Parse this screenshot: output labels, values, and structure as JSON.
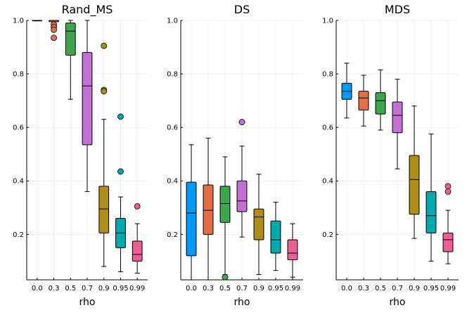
{
  "chart_data": {
    "type": "box",
    "panels": [
      {
        "title": "Rand_MS",
        "xlabel": "rho",
        "ylim": [
          0.03,
          1.0
        ],
        "yticks": [
          "0.2",
          "0.4",
          "0.6",
          "0.8",
          "1.0"
        ],
        "categories": [
          "0.0",
          "0.3",
          "0.5",
          "0.7",
          "0.9",
          "0.95",
          "0.99"
        ],
        "boxes": [
          {
            "low": 1.0,
            "q1": 1.0,
            "median": 1.0,
            "q3": 1.0,
            "high": 1.0,
            "outliers": []
          },
          {
            "low": 0.99,
            "q1": 0.995,
            "median": 1.0,
            "q3": 1.0,
            "high": 1.0,
            "outliers": [
              0.985,
              0.975,
              0.965,
              0.935
            ]
          },
          {
            "low": 0.705,
            "q1": 0.87,
            "median": 0.96,
            "q3": 0.99,
            "high": 1.0,
            "outliers": []
          },
          {
            "low": 0.36,
            "q1": 0.535,
            "median": 0.755,
            "q3": 0.88,
            "high": 1.0,
            "outliers": []
          },
          {
            "low": 0.08,
            "q1": 0.205,
            "median": 0.295,
            "q3": 0.38,
            "high": 0.63,
            "outliers": [
              0.905,
              0.74,
              0.735
            ]
          },
          {
            "low": 0.06,
            "q1": 0.15,
            "median": 0.205,
            "q3": 0.26,
            "high": 0.34,
            "outliers": [
              0.64,
              0.435
            ]
          },
          {
            "low": 0.055,
            "q1": 0.1,
            "median": 0.125,
            "q3": 0.175,
            "high": 0.24,
            "outliers": [
              0.305
            ]
          }
        ]
      },
      {
        "title": "DS",
        "xlabel": "rho",
        "ylim": [
          0.03,
          1.0
        ],
        "yticks": [
          "0.2",
          "0.4",
          "0.6",
          "0.8",
          "1.0"
        ],
        "categories": [
          "0.0",
          "0.3",
          "0.5",
          "0.7",
          "0.9",
          "0.95",
          "0.99"
        ],
        "boxes": [
          {
            "low": 0.03,
            "q1": 0.12,
            "median": 0.28,
            "q3": 0.395,
            "high": 0.535,
            "outliers": []
          },
          {
            "low": 0.03,
            "q1": 0.2,
            "median": 0.29,
            "q3": 0.385,
            "high": 0.56,
            "outliers": []
          },
          {
            "low": 0.05,
            "q1": 0.245,
            "median": 0.315,
            "q3": 0.38,
            "high": 0.49,
            "outliers": [
              0.04
            ]
          },
          {
            "low": 0.19,
            "q1": 0.285,
            "median": 0.325,
            "q3": 0.4,
            "high": 0.53,
            "outliers": [
              0.62
            ]
          },
          {
            "low": 0.05,
            "q1": 0.18,
            "median": 0.265,
            "q3": 0.295,
            "high": 0.425,
            "outliers": []
          },
          {
            "low": 0.065,
            "q1": 0.13,
            "median": 0.18,
            "q3": 0.25,
            "high": 0.32,
            "outliers": []
          },
          {
            "low": 0.04,
            "q1": 0.105,
            "median": 0.13,
            "q3": 0.18,
            "high": 0.24,
            "outliers": []
          }
        ]
      },
      {
        "title": "MDS",
        "xlabel": "rho",
        "ylim": [
          0.03,
          1.0
        ],
        "yticks": [
          "0.2",
          "0.4",
          "0.6",
          "0.8",
          "1.0"
        ],
        "categories": [
          "0.0",
          "0.3",
          "0.5",
          "0.7",
          "0.9",
          "0.95",
          "0.99"
        ],
        "boxes": [
          {
            "low": 0.635,
            "q1": 0.705,
            "median": 0.735,
            "q3": 0.765,
            "high": 0.84,
            "outliers": []
          },
          {
            "low": 0.605,
            "q1": 0.665,
            "median": 0.71,
            "q3": 0.735,
            "high": 0.795,
            "outliers": []
          },
          {
            "low": 0.59,
            "q1": 0.65,
            "median": 0.7,
            "q3": 0.73,
            "high": 0.815,
            "outliers": []
          },
          {
            "low": 0.445,
            "q1": 0.58,
            "median": 0.645,
            "q3": 0.695,
            "high": 0.78,
            "outliers": []
          },
          {
            "low": 0.185,
            "q1": 0.275,
            "median": 0.405,
            "q3": 0.495,
            "high": 0.68,
            "outliers": []
          },
          {
            "low": 0.1,
            "q1": 0.205,
            "median": 0.27,
            "q3": 0.36,
            "high": 0.575,
            "outliers": []
          },
          {
            "low": 0.09,
            "q1": 0.135,
            "median": 0.18,
            "q3": 0.205,
            "high": 0.29,
            "outliers": [
              0.38,
              0.36
            ]
          }
        ]
      }
    ],
    "colors": [
      "#009af9",
      "#e26f46",
      "#3ea44e",
      "#c271d2",
      "#ac8e18",
      "#00a9ad",
      "#ed5e93"
    ],
    "grid": true,
    "legend": "none"
  }
}
